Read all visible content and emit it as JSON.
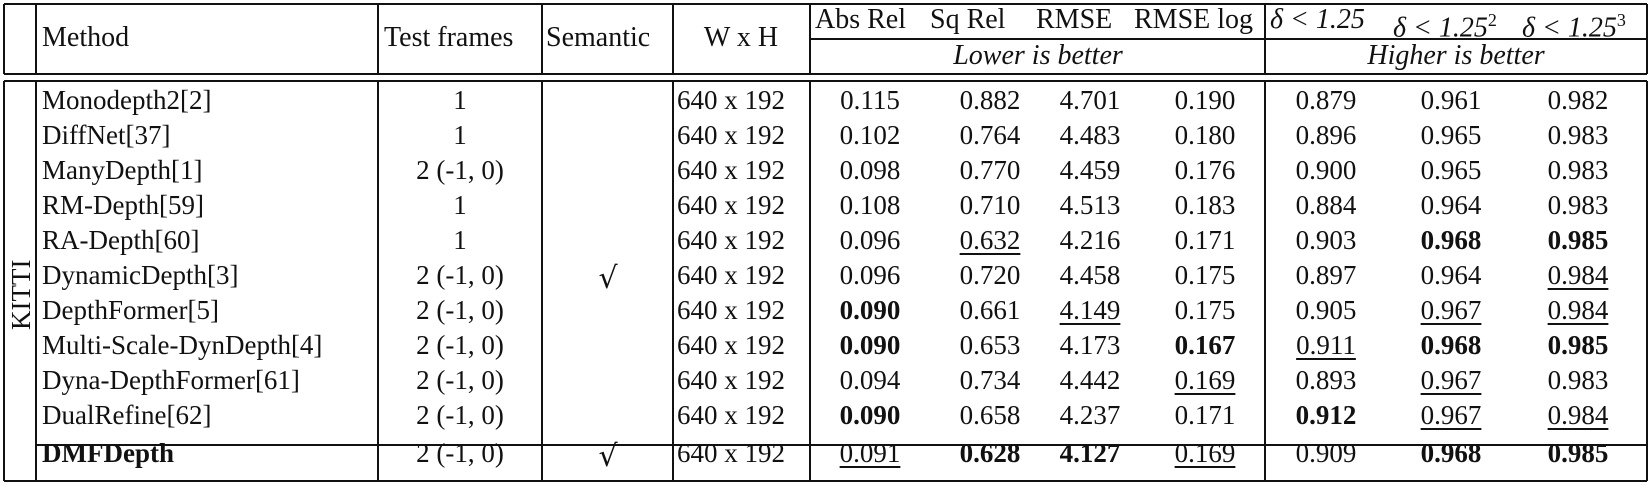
{
  "headers": {
    "method": "Method",
    "test_frames": "Test frames",
    "semantic": "Semantic",
    "wxh": "W x H",
    "abs_rel": "Abs Rel",
    "sq_rel": "Sq Rel",
    "rmse": "RMSE",
    "rmse_log": "RMSE log",
    "d1": "δ < 1.25",
    "d2_base": "δ < 1.25",
    "d2_exp": "2",
    "d3_base": "δ < 1.25",
    "d3_exp": "3",
    "lower": "Lower is better",
    "higher": "Higher is better"
  },
  "group_label": "KITTI",
  "check_mark": "√",
  "rows": [
    {
      "method": "Monodepth2[2]",
      "frames": "1",
      "semantic": false,
      "wxh": "640 x 192",
      "v": [
        "0.115",
        "0.882",
        "4.701",
        "0.190",
        "0.879",
        "0.961",
        "0.982"
      ],
      "bold": [],
      "under": []
    },
    {
      "method": "DiffNet[37]",
      "frames": "1",
      "semantic": false,
      "wxh": "640 x 192",
      "v": [
        "0.102",
        "0.764",
        "4.483",
        "0.180",
        "0.896",
        "0.965",
        "0.983"
      ],
      "bold": [],
      "under": []
    },
    {
      "method": "ManyDepth[1]",
      "frames": "2 (-1, 0)",
      "semantic": false,
      "wxh": "640 x 192",
      "v": [
        "0.098",
        "0.770",
        "4.459",
        "0.176",
        "0.900",
        "0.965",
        "0.983"
      ],
      "bold": [],
      "under": []
    },
    {
      "method": "RM-Depth[59]",
      "frames": "1",
      "semantic": false,
      "wxh": "640 x 192",
      "v": [
        "0.108",
        "0.710",
        "4.513",
        "0.183",
        "0.884",
        "0.964",
        "0.983"
      ],
      "bold": [],
      "under": []
    },
    {
      "method": "RA-Depth[60]",
      "frames": "1",
      "semantic": false,
      "wxh": "640 x 192",
      "v": [
        "0.096",
        "0.632",
        "4.216",
        "0.171",
        "0.903",
        "0.968",
        "0.985"
      ],
      "bold": [
        5,
        6
      ],
      "under": [
        1
      ]
    },
    {
      "method": "DynamicDepth[3]",
      "frames": "2 (-1, 0)",
      "semantic": true,
      "wxh": "640 x 192",
      "v": [
        "0.096",
        "0.720",
        "4.458",
        "0.175",
        "0.897",
        "0.964",
        "0.984"
      ],
      "bold": [],
      "under": [
        6
      ]
    },
    {
      "method": "DepthFormer[5]",
      "frames": "2 (-1, 0)",
      "semantic": false,
      "wxh": "640 x 192",
      "v": [
        "0.090",
        "0.661",
        "4.149",
        "0.175",
        "0.905",
        "0.967",
        "0.984"
      ],
      "bold": [
        0
      ],
      "under": [
        2,
        5,
        6
      ]
    },
    {
      "method": "Multi-Scale-DynDepth[4]",
      "frames": "2 (-1, 0)",
      "semantic": false,
      "wxh": "640 x 192",
      "v": [
        "0.090",
        "0.653",
        "4.173",
        "0.167",
        "0.911",
        "0.968",
        "0.985"
      ],
      "bold": [
        0,
        3,
        5,
        6
      ],
      "under": [
        4
      ]
    },
    {
      "method": "Dyna-DepthFormer[61]",
      "frames": "2 (-1, 0)",
      "semantic": false,
      "wxh": "640 x 192",
      "v": [
        "0.094",
        "0.734",
        "4.442",
        "0.169",
        "0.893",
        "0.967",
        "0.983"
      ],
      "bold": [],
      "under": [
        3,
        5
      ]
    },
    {
      "method": "DualRefine[62]",
      "frames": "2 (-1, 0)",
      "semantic": false,
      "wxh": "640 x 192",
      "v": [
        "0.090",
        "0.658",
        "4.237",
        "0.171",
        "0.912",
        "0.967",
        "0.984"
      ],
      "bold": [
        0,
        4
      ],
      "under": [
        5,
        6
      ]
    },
    {
      "method": "DMFDepth",
      "frames": "2 (-1, 0)",
      "semantic": true,
      "wxh": "640 x 192",
      "v": [
        "0.091",
        "0.628",
        "4.127",
        "0.169",
        "0.909",
        "0.968",
        "0.985"
      ],
      "bold": [
        1,
        2,
        5,
        6
      ],
      "under": [
        0,
        3
      ],
      "method_bold": true
    }
  ]
}
